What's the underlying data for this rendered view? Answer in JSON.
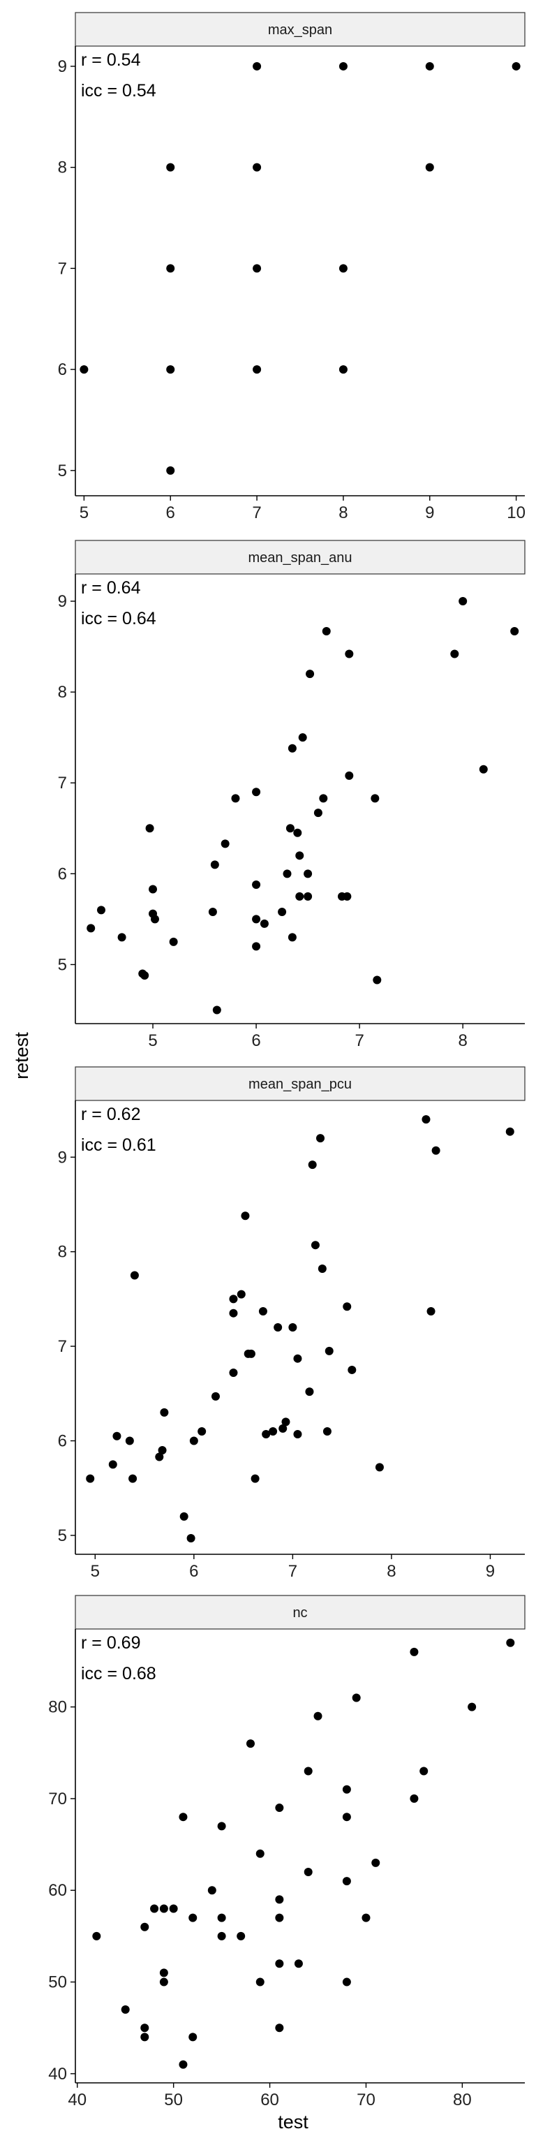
{
  "chart_data": {
    "type": "scatter",
    "xlabel": "test",
    "ylabel": "retest",
    "grid": false,
    "panels": [
      {
        "strip": "max_span",
        "stats": [
          "r = 0.54",
          "icc = 0.54"
        ],
        "xlim": [
          4.9,
          10.1
        ],
        "ylim": [
          4.75,
          9.2
        ],
        "x_ticks": [
          5,
          6,
          7,
          8,
          9,
          10
        ],
        "y_ticks": [
          5,
          6,
          7,
          8,
          9
        ],
        "points": [
          [
            5,
            6
          ],
          [
            6,
            6
          ],
          [
            6,
            5
          ],
          [
            6,
            7
          ],
          [
            6,
            8
          ],
          [
            7,
            6
          ],
          [
            7,
            7
          ],
          [
            7,
            8
          ],
          [
            7,
            9
          ],
          [
            8,
            6
          ],
          [
            8,
            7
          ],
          [
            8,
            9
          ],
          [
            9,
            8
          ],
          [
            9,
            9
          ],
          [
            10,
            9
          ]
        ]
      },
      {
        "strip": "mean_span_anu",
        "stats": [
          "r = 0.64",
          "icc = 0.64"
        ],
        "xlim": [
          4.25,
          8.6
        ],
        "ylim": [
          4.35,
          9.3
        ],
        "x_ticks": [
          5,
          6,
          7,
          8
        ],
        "y_ticks": [
          5,
          6,
          7,
          8,
          9
        ],
        "points": [
          [
            4.4,
            5.4
          ],
          [
            4.5,
            5.6
          ],
          [
            4.7,
            5.3
          ],
          [
            4.9,
            4.9
          ],
          [
            4.92,
            4.88
          ],
          [
            4.97,
            6.5
          ],
          [
            5.0,
            5.83
          ],
          [
            5.0,
            5.56
          ],
          [
            5.02,
            5.5
          ],
          [
            5.2,
            5.25
          ],
          [
            5.58,
            5.58
          ],
          [
            5.6,
            6.1
          ],
          [
            5.62,
            4.5
          ],
          [
            5.7,
            6.33
          ],
          [
            5.8,
            6.83
          ],
          [
            6.0,
            6.9
          ],
          [
            6.0,
            5.88
          ],
          [
            6.0,
            5.5
          ],
          [
            6.0,
            5.2
          ],
          [
            6.08,
            5.45
          ],
          [
            6.25,
            5.58
          ],
          [
            6.3,
            6.0
          ],
          [
            6.33,
            6.5
          ],
          [
            6.35,
            5.3
          ],
          [
            6.35,
            7.38
          ],
          [
            6.4,
            6.45
          ],
          [
            6.42,
            6.2
          ],
          [
            6.42,
            5.75
          ],
          [
            6.45,
            7.5
          ],
          [
            6.5,
            6.0
          ],
          [
            6.5,
            5.75
          ],
          [
            6.52,
            8.2
          ],
          [
            6.6,
            6.67
          ],
          [
            6.65,
            6.83
          ],
          [
            6.68,
            8.67
          ],
          [
            6.83,
            5.75
          ],
          [
            6.88,
            5.75
          ],
          [
            6.9,
            8.42
          ],
          [
            6.9,
            7.08
          ],
          [
            7.15,
            6.83
          ],
          [
            7.17,
            4.83
          ],
          [
            7.92,
            8.42
          ],
          [
            8.0,
            9.0
          ],
          [
            8.2,
            7.15
          ],
          [
            8.5,
            8.67
          ]
        ]
      },
      {
        "strip": "mean_span_pcu",
        "stats": [
          "r = 0.62",
          "icc = 0.61"
        ],
        "xlim": [
          4.8,
          9.35
        ],
        "ylim": [
          4.8,
          9.6
        ],
        "x_ticks": [
          5,
          6,
          7,
          8,
          9
        ],
        "y_ticks": [
          5,
          6,
          7,
          8,
          9
        ],
        "points": [
          [
            4.95,
            5.6
          ],
          [
            5.18,
            5.75
          ],
          [
            5.22,
            6.05
          ],
          [
            5.35,
            6.0
          ],
          [
            5.38,
            5.6
          ],
          [
            5.4,
            7.75
          ],
          [
            5.65,
            5.83
          ],
          [
            5.68,
            5.9
          ],
          [
            5.7,
            6.3
          ],
          [
            5.9,
            5.2
          ],
          [
            5.97,
            4.97
          ],
          [
            6.0,
            6.0
          ],
          [
            6.08,
            6.1
          ],
          [
            6.22,
            6.47
          ],
          [
            6.4,
            6.72
          ],
          [
            6.4,
            7.5
          ],
          [
            6.4,
            7.35
          ],
          [
            6.48,
            7.55
          ],
          [
            6.52,
            8.38
          ],
          [
            6.55,
            6.92
          ],
          [
            6.58,
            6.92
          ],
          [
            6.62,
            5.6
          ],
          [
            6.7,
            7.37
          ],
          [
            6.73,
            6.07
          ],
          [
            6.8,
            6.1
          ],
          [
            6.85,
            7.2
          ],
          [
            6.9,
            6.13
          ],
          [
            6.93,
            6.2
          ],
          [
            7.0,
            7.2
          ],
          [
            7.05,
            6.87
          ],
          [
            7.05,
            6.07
          ],
          [
            7.17,
            6.52
          ],
          [
            7.2,
            8.92
          ],
          [
            7.23,
            8.07
          ],
          [
            7.28,
            9.2
          ],
          [
            7.3,
            7.82
          ],
          [
            7.35,
            6.1
          ],
          [
            7.37,
            6.95
          ],
          [
            7.55,
            7.42
          ],
          [
            7.6,
            6.75
          ],
          [
            7.88,
            5.72
          ],
          [
            8.35,
            9.4
          ],
          [
            8.4,
            7.37
          ],
          [
            8.45,
            9.07
          ],
          [
            9.2,
            9.27
          ]
        ]
      },
      {
        "strip": "nc",
        "stats": [
          "r = 0.69",
          "icc = 0.68"
        ],
        "xlim": [
          39.8,
          86.5
        ],
        "ylim": [
          39,
          88.5
        ],
        "x_ticks": [
          40,
          50,
          60,
          70,
          80
        ],
        "y_ticks": [
          40,
          50,
          60,
          70,
          80
        ],
        "points": [
          [
            42,
            55
          ],
          [
            45,
            47
          ],
          [
            47,
            45
          ],
          [
            47,
            44
          ],
          [
            47,
            56
          ],
          [
            48,
            58
          ],
          [
            49,
            58
          ],
          [
            49,
            51
          ],
          [
            49,
            50
          ],
          [
            50,
            58
          ],
          [
            51,
            68
          ],
          [
            51,
            41
          ],
          [
            52,
            44
          ],
          [
            52,
            57
          ],
          [
            54,
            60
          ],
          [
            55,
            67
          ],
          [
            55,
            55
          ],
          [
            55,
            57
          ],
          [
            57,
            55
          ],
          [
            58,
            76
          ],
          [
            59,
            64
          ],
          [
            59,
            50
          ],
          [
            61,
            69
          ],
          [
            61,
            59
          ],
          [
            61,
            57
          ],
          [
            61,
            52
          ],
          [
            61,
            45
          ],
          [
            63,
            52
          ],
          [
            64,
            73
          ],
          [
            64,
            62
          ],
          [
            65,
            79
          ],
          [
            68,
            71
          ],
          [
            68,
            68
          ],
          [
            68,
            61
          ],
          [
            68,
            50
          ],
          [
            69,
            81
          ],
          [
            70,
            57
          ],
          [
            71,
            63
          ],
          [
            75,
            70
          ],
          [
            75,
            86
          ],
          [
            76,
            73
          ],
          [
            81,
            80
          ],
          [
            85,
            87
          ]
        ]
      }
    ]
  }
}
